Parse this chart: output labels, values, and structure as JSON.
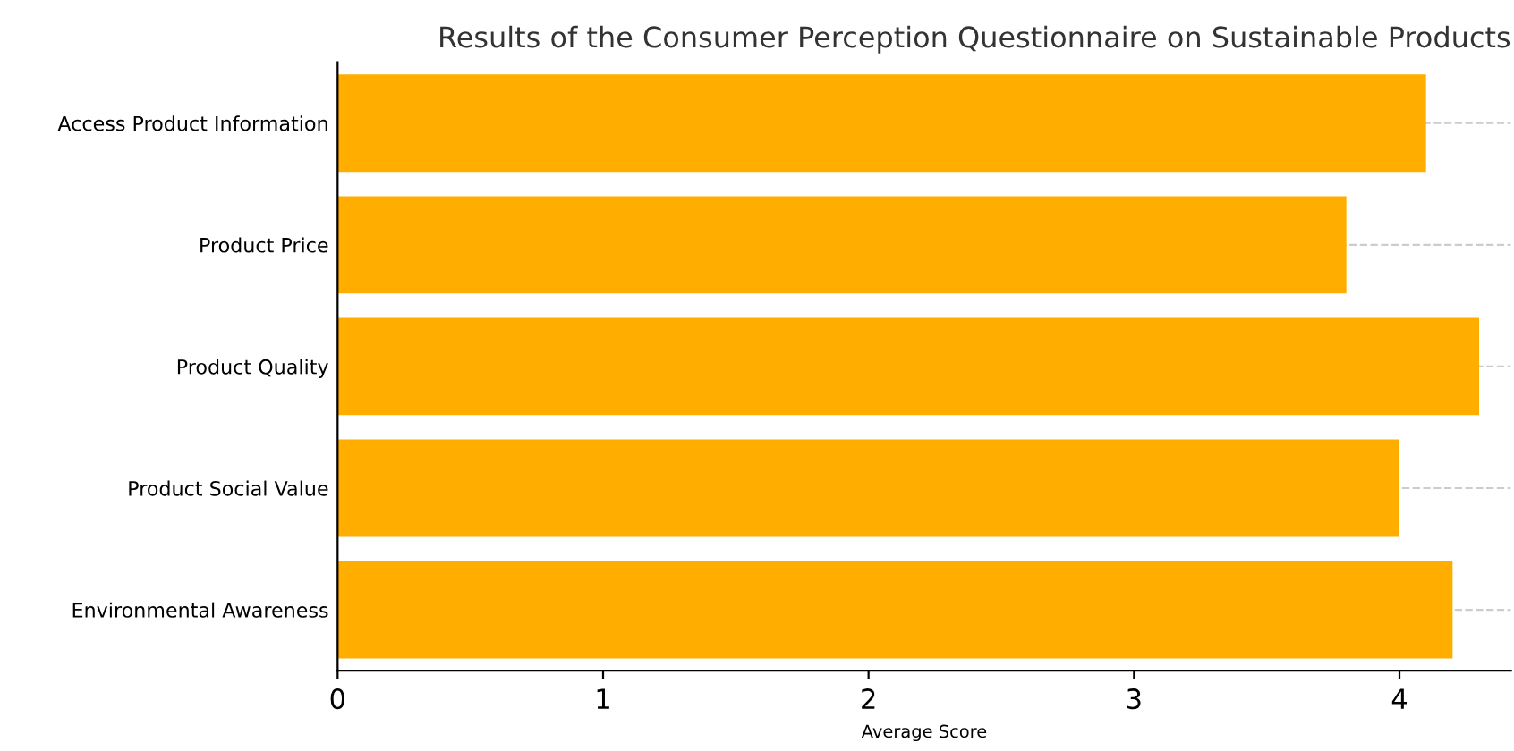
{
  "chart_data": {
    "type": "bar",
    "orientation": "horizontal",
    "title": "Results of the Consumer Perception Questionnaire on Sustainable Products",
    "xlabel": "Average Score",
    "categories": [
      "Access Product Information",
      "Product Price",
      "Product Quality",
      "Product Social Value",
      "Environmental Awareness"
    ],
    "values": [
      4.1,
      3.8,
      4.3,
      4.0,
      4.2
    ],
    "color": "#ffae00",
    "xlim": [
      0,
      4.42
    ],
    "xticks": [
      0,
      1,
      2,
      3,
      4
    ],
    "grid": "y",
    "legend": false
  }
}
